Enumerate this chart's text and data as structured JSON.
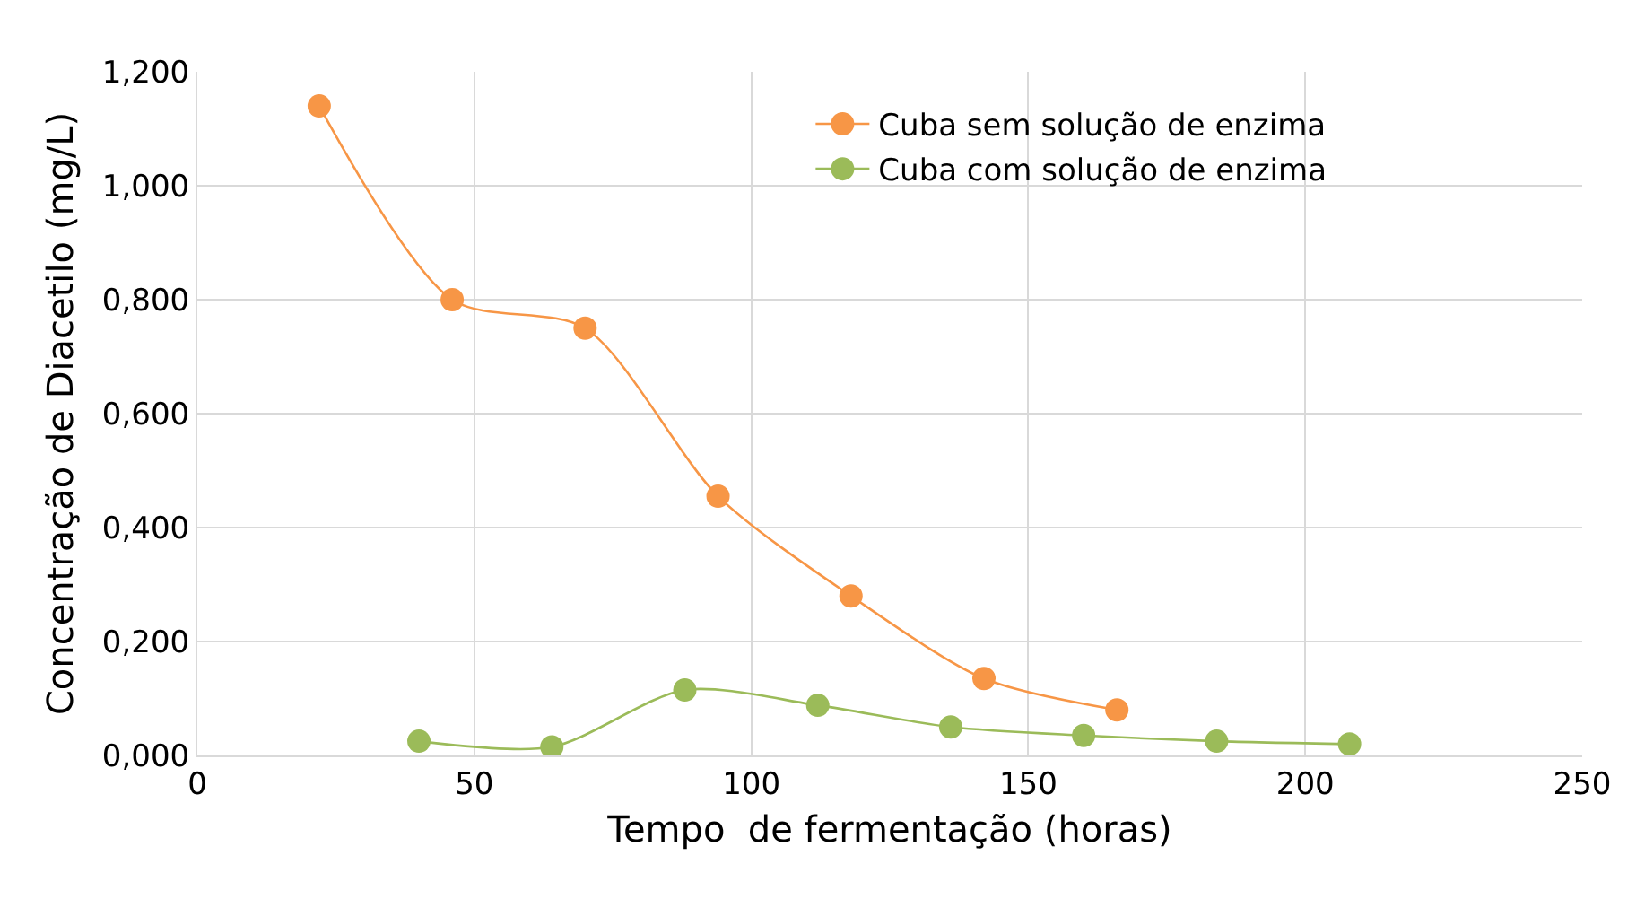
{
  "chart_data": {
    "type": "line",
    "xlabel": "Tempo  de fermentação (horas)",
    "ylabel": "Concentração de Diacetilo (mg/L)",
    "xlim": [
      0,
      250
    ],
    "xticks": [
      0,
      50,
      100,
      150,
      200,
      250
    ],
    "ylim": [
      0,
      1.2
    ],
    "yticks": [
      {
        "value": 0,
        "label": "0,000"
      },
      {
        "value": 0.2,
        "label": "0,200"
      },
      {
        "value": 0.4,
        "label": "0,400"
      },
      {
        "value": 0.6,
        "label": "0,600"
      },
      {
        "value": 0.8,
        "label": "0,800"
      },
      {
        "value": 1.0,
        "label": "1,000"
      },
      {
        "value": 1.2,
        "label": "1,200"
      }
    ],
    "grid": true,
    "legend": "top right",
    "marker": "circle",
    "series": [
      {
        "name": "Cuba sem solução de enzima",
        "color": "#f79646",
        "x": [
          22,
          46,
          70,
          94,
          118,
          142,
          166
        ],
        "values": [
          1.14,
          0.8,
          0.75,
          0.455,
          0.28,
          0.135,
          0.08
        ]
      },
      {
        "name": "Cuba com solução de enzima",
        "color": "#9bbb59",
        "x": [
          40,
          64,
          88,
          112,
          136,
          160,
          184,
          208
        ],
        "values": [
          0.025,
          0.015,
          0.115,
          0.088,
          0.05,
          0.035,
          0.025,
          0.02
        ]
      }
    ]
  }
}
